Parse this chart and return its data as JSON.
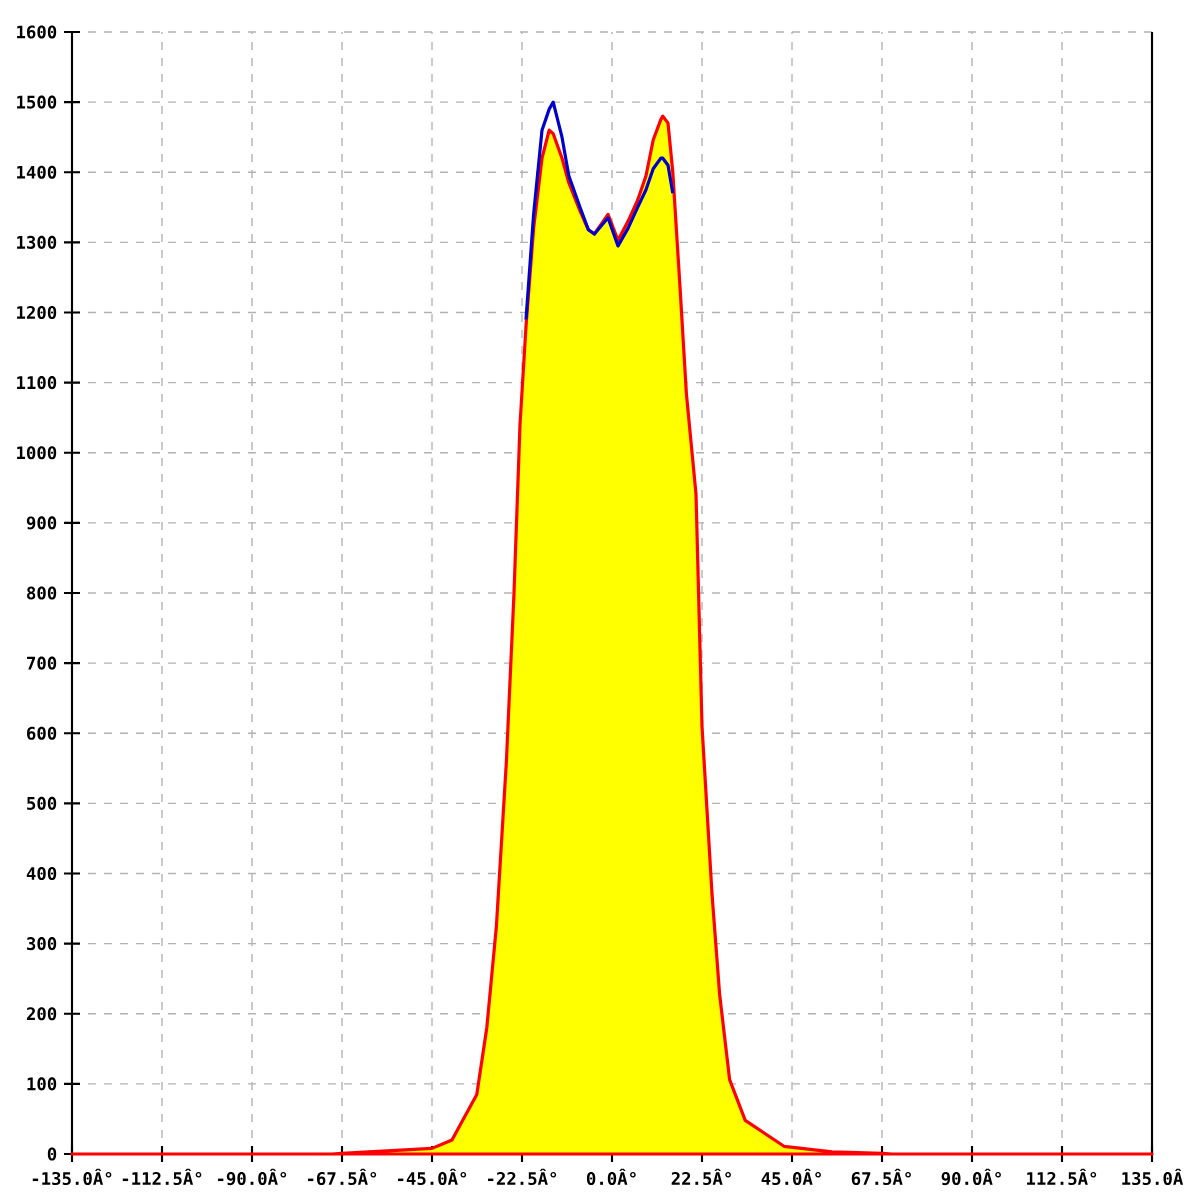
{
  "chart_data": {
    "type": "line",
    "x": [
      -135,
      -70,
      -67.5,
      -45,
      -40,
      -33.8,
      -31.3,
      -28.9,
      -26.4,
      -24.5,
      -23,
      -21.5,
      -19.6,
      -17.5,
      -15.7,
      -14.7,
      -12.5,
      -10.8,
      -8,
      -5.9,
      -4.4,
      -1,
      1.5,
      4,
      6.4,
      8.5,
      10.3,
      12.2,
      12.7,
      14,
      15.2,
      17.1,
      18.6,
      21,
      22.5,
      25,
      26.9,
      29.4,
      33.3,
      43,
      55,
      67.5,
      70,
      135
    ],
    "series": [
      {
        "type": "area",
        "color": "#ffff00",
        "values": [
          0,
          0,
          1,
          8,
          20,
          85,
          180,
          325,
          560,
          800,
          1040,
          1180,
          1320,
          1420,
          1460,
          1455,
          1420,
          1385,
          1345,
          1318,
          1312,
          1340,
          1303,
          1330,
          1360,
          1395,
          1446,
          1475,
          1480,
          1470,
          1400,
          1227,
          1084,
          941,
          610,
          371,
          228,
          106,
          48,
          11,
          3,
          1,
          0,
          0
        ]
      },
      {
        "color": "#0000cc",
        "values": [
          null,
          null,
          null,
          null,
          null,
          null,
          null,
          null,
          null,
          null,
          null,
          1190,
          1340,
          1460,
          1490,
          1500,
          1450,
          1395,
          1350,
          1318,
          1312,
          1335,
          1295,
          1320,
          1350,
          1375,
          1405,
          1420,
          1420,
          1410,
          1370,
          null,
          null,
          null,
          null,
          null,
          null,
          null,
          null,
          null,
          null,
          null,
          null,
          null
        ]
      }
    ],
    "xlim": [
      -135,
      135
    ],
    "ylim": [
      0,
      1600
    ],
    "xticks": [
      {
        "value": -135,
        "label": "-135.0Â°"
      },
      {
        "value": -112.5,
        "label": "-112.5Â°"
      },
      {
        "value": -90,
        "label": "-90.0Â°"
      },
      {
        "value": -67.5,
        "label": "-67.5Â°"
      },
      {
        "value": -45,
        "label": "-45.0Â°"
      },
      {
        "value": -22.5,
        "label": "-22.5Â°"
      },
      {
        "value": 0,
        "label": "0.0Â°"
      },
      {
        "value": 22.5,
        "label": "22.5Â°"
      },
      {
        "value": 45,
        "label": "45.0Â°"
      },
      {
        "value": 67.5,
        "label": "67.5Â°"
      },
      {
        "value": 90,
        "label": "90.0Â°"
      },
      {
        "value": 112.5,
        "label": "112.5Â°"
      },
      {
        "value": 135,
        "label": "135.0Â"
      }
    ],
    "yticks": [
      0,
      100,
      200,
      300,
      400,
      500,
      600,
      700,
      800,
      900,
      1000,
      1100,
      1200,
      1300,
      1400,
      1500,
      1600
    ],
    "grid": true,
    "marker": "none"
  }
}
